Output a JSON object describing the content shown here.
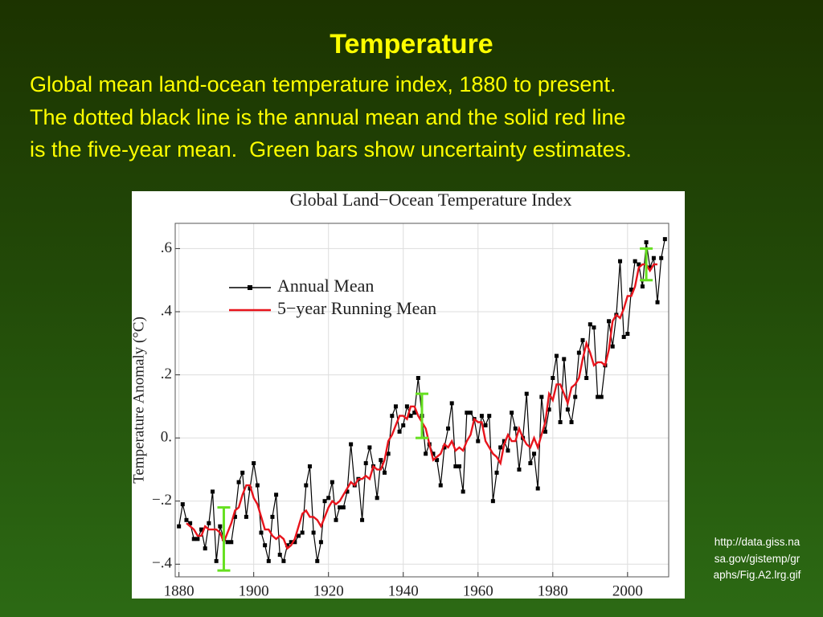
{
  "slide": {
    "title": "Temperature",
    "body": [
      "Global mean land-ocean temperature index, 1880 to present.",
      "The dotted black line is the annual mean and the solid red line",
      "is the five-year mean.  Green bars show uncertainty estimates."
    ],
    "source": [
      "http://data.giss.na",
      "sa.gov/gistemp/gr",
      "aphs/Fig.A2.lrg.gif"
    ]
  },
  "chart_data": {
    "type": "line",
    "title": "Global Land−Ocean Temperature Index",
    "y_label": "Temperature Anomaly (°C)",
    "xlim": [
      1879,
      2011
    ],
    "ylim": [
      -0.44,
      0.68
    ],
    "xticks": [
      1880,
      1900,
      1920,
      1940,
      1960,
      1980,
      2000
    ],
    "yticks": [
      {
        "value": 0.6,
        "label": ".6"
      },
      {
        "value": 0.4,
        "label": ".4"
      },
      {
        "value": 0.2,
        "label": ".2"
      },
      {
        "value": 0,
        "label": "0."
      },
      {
        "value": -0.2,
        "label": "−.2"
      },
      {
        "value": -0.4,
        "label": "−.4"
      }
    ],
    "grid": true,
    "legend": "upper left",
    "x": [
      1880,
      1881,
      1882,
      1883,
      1884,
      1885,
      1886,
      1887,
      1888,
      1889,
      1890,
      1891,
      1892,
      1893,
      1894,
      1895,
      1896,
      1897,
      1898,
      1899,
      1900,
      1901,
      1902,
      1903,
      1904,
      1905,
      1906,
      1907,
      1908,
      1909,
      1910,
      1911,
      1912,
      1913,
      1914,
      1915,
      1916,
      1917,
      1918,
      1919,
      1920,
      1921,
      1922,
      1923,
      1924,
      1925,
      1926,
      1927,
      1928,
      1929,
      1930,
      1931,
      1932,
      1933,
      1934,
      1935,
      1936,
      1937,
      1938,
      1939,
      1940,
      1941,
      1942,
      1943,
      1944,
      1945,
      1946,
      1947,
      1948,
      1949,
      1950,
      1951,
      1952,
      1953,
      1954,
      1955,
      1956,
      1957,
      1958,
      1959,
      1960,
      1961,
      1962,
      1963,
      1964,
      1965,
      1966,
      1967,
      1968,
      1969,
      1970,
      1971,
      1972,
      1973,
      1974,
      1975,
      1976,
      1977,
      1978,
      1979,
      1980,
      1981,
      1982,
      1983,
      1984,
      1985,
      1986,
      1987,
      1988,
      1989,
      1990,
      1991,
      1992,
      1993,
      1994,
      1995,
      1996,
      1997,
      1998,
      1999,
      2000,
      2001,
      2002,
      2003,
      2004,
      2005,
      2006,
      2007,
      2008,
      2009,
      2010
    ],
    "series": [
      {
        "name": "Annual Mean",
        "color": "#000000",
        "markers": true,
        "values": [
          -0.28,
          -0.21,
          -0.26,
          -0.27,
          -0.32,
          -0.32,
          -0.29,
          -0.35,
          -0.27,
          -0.17,
          -0.39,
          -0.28,
          -0.32,
          -0.33,
          -0.33,
          -0.25,
          -0.14,
          -0.11,
          -0.25,
          -0.16,
          -0.08,
          -0.15,
          -0.3,
          -0.34,
          -0.39,
          -0.25,
          -0.18,
          -0.37,
          -0.39,
          -0.34,
          -0.33,
          -0.33,
          -0.31,
          -0.3,
          -0.15,
          -0.09,
          -0.3,
          -0.39,
          -0.33,
          -0.2,
          -0.19,
          -0.14,
          -0.26,
          -0.22,
          -0.22,
          -0.17,
          -0.02,
          -0.15,
          -0.13,
          -0.26,
          -0.08,
          -0.03,
          -0.09,
          -0.19,
          -0.07,
          -0.11,
          -0.05,
          0.07,
          0.1,
          0.02,
          0.04,
          0.1,
          0.07,
          0.08,
          0.19,
          0.07,
          -0.05,
          -0.02,
          -0.05,
          -0.07,
          -0.15,
          -0.03,
          0.03,
          0.11,
          -0.09,
          -0.09,
          -0.17,
          0.08,
          0.08,
          0.06,
          -0.01,
          0.07,
          0.04,
          0.07,
          -0.2,
          -0.11,
          -0.03,
          -0.01,
          -0.04,
          0.08,
          0.03,
          -0.1,
          0,
          0.14,
          -0.08,
          -0.05,
          -0.16,
          0.13,
          0.02,
          0.09,
          0.19,
          0.26,
          0.05,
          0.25,
          0.09,
          0.05,
          0.13,
          0.27,
          0.31,
          0.19,
          0.36,
          0.35,
          0.13,
          0.13,
          0.23,
          0.37,
          0.29,
          0.39,
          0.56,
          0.32,
          0.33,
          0.47,
          0.56,
          0.55,
          0.48,
          0.62,
          0.54,
          0.57,
          0.43,
          0.57,
          0.63
        ]
      },
      {
        "name": "5−year Running Mean",
        "color": "#e8141c",
        "markers": false,
        "values": [
          null,
          null,
          -0.27,
          -0.28,
          -0.29,
          -0.31,
          -0.31,
          -0.28,
          -0.29,
          -0.29,
          -0.29,
          -0.3,
          -0.33,
          -0.3,
          -0.27,
          -0.23,
          -0.22,
          -0.18,
          -0.15,
          -0.15,
          -0.19,
          -0.21,
          -0.25,
          -0.29,
          -0.29,
          -0.31,
          -0.32,
          -0.31,
          -0.32,
          -0.35,
          -0.34,
          -0.32,
          -0.28,
          -0.24,
          -0.23,
          -0.25,
          -0.25,
          -0.26,
          -0.28,
          -0.25,
          -0.22,
          -0.2,
          -0.21,
          -0.2,
          -0.18,
          -0.16,
          -0.14,
          -0.15,
          -0.13,
          -0.13,
          -0.12,
          -0.13,
          -0.09,
          -0.1,
          -0.1,
          -0.07,
          -0.01,
          0.01,
          0.04,
          0.07,
          0.07,
          0.06,
          0.1,
          0.1,
          0.07,
          0.05,
          0.03,
          -0.02,
          -0.07,
          -0.06,
          -0.05,
          -0.02,
          -0.03,
          -0.01,
          -0.04,
          -0.03,
          -0.04,
          -0.01,
          0.01,
          0.06,
          0.05,
          0.05,
          -0.01,
          -0.03,
          -0.05,
          -0.06,
          -0.08,
          -0.02,
          0.01,
          -0.01,
          -0.01,
          0.03,
          0,
          -0.02,
          -0.03,
          0,
          -0.03,
          0.01,
          0.05,
          0.14,
          0.12,
          0.17,
          0.17,
          0.14,
          0.11,
          0.16,
          0.17,
          0.19,
          0.25,
          0.3,
          0.27,
          0.23,
          0.24,
          0.24,
          0.23,
          0.28,
          0.37,
          0.39,
          0.38,
          0.41,
          0.45,
          0.45,
          0.48,
          0.54,
          0.55,
          0.55,
          0.53,
          0.55,
          0.55,
          null,
          null
        ]
      }
    ],
    "uncertainty": {
      "color": "#66e020",
      "x": [
        1892,
        1945,
        2005
      ],
      "values": [
        -0.32,
        0.07,
        0.55
      ],
      "errors": [
        0.1,
        0.07,
        0.05
      ]
    }
  }
}
